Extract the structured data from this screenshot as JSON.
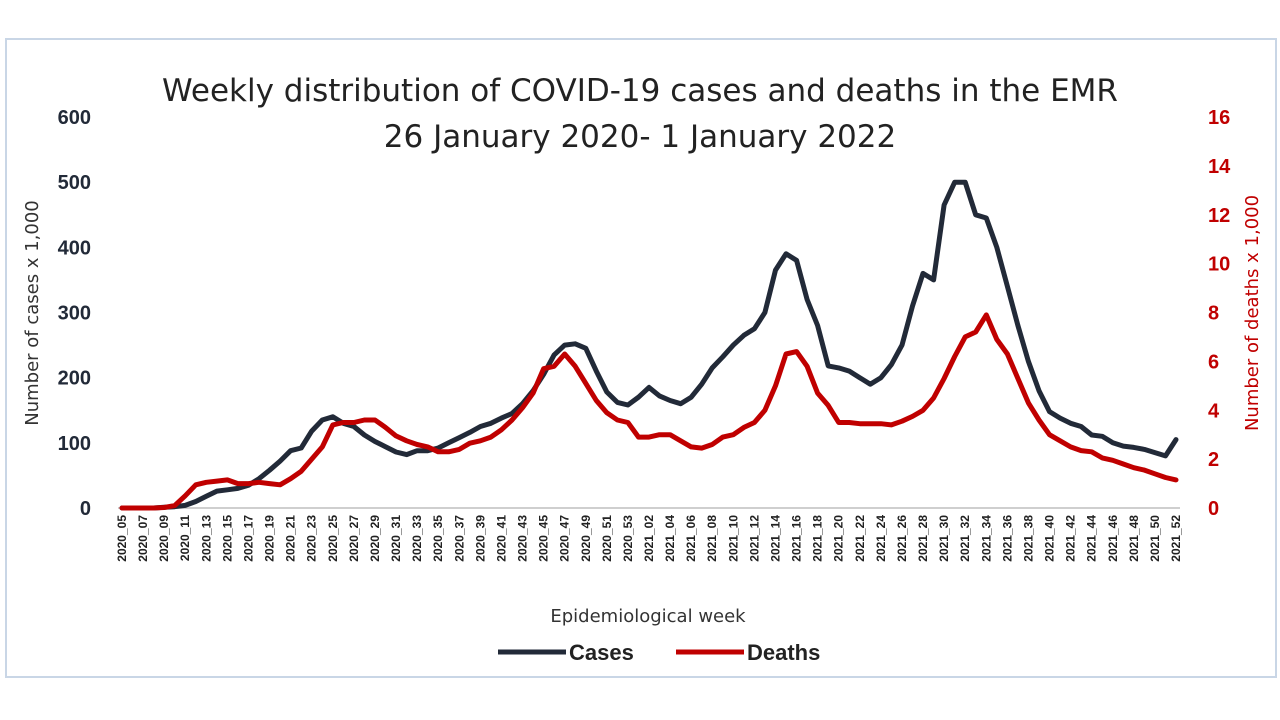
{
  "chart_data": {
    "type": "line",
    "title": "Weekly distribution of COVID-19 cases and deaths in the EMR",
    "subtitle": "26 January 2020- 1 January 2022",
    "xlabel": "Epidemiological week",
    "ylabel": "Number of cases x 1,000",
    "ylabel_right": "Number of deaths x 1,000",
    "ylim": [
      0,
      600
    ],
    "ylim_right": [
      0,
      16
    ],
    "yticks": [
      "0",
      "100",
      "200",
      "300",
      "400",
      "500",
      "600"
    ],
    "yticks_right": [
      "0",
      "2",
      "4",
      "6",
      "8",
      "10",
      "12",
      "14",
      "16"
    ],
    "legend_position": "bottom",
    "grid": false,
    "x": [
      "2020_05",
      "2020_06",
      "2020_07",
      "2020_08",
      "2020_09",
      "2020_10",
      "2020_11",
      "2020_12",
      "2020_13",
      "2020_14",
      "2020_15",
      "2020_16",
      "2020_17",
      "2020_18",
      "2020_19",
      "2020_20",
      "2020_21",
      "2020_22",
      "2020_23",
      "2020_24",
      "2020_25",
      "2020_26",
      "2020_27",
      "2020_28",
      "2020_29",
      "2020_30",
      "2020_31",
      "2020_32",
      "2020_33",
      "2020_34",
      "2020_35",
      "2020_36",
      "2020_37",
      "2020_38",
      "2020_39",
      "2020_40",
      "2020_41",
      "2020_42",
      "2020_43",
      "2020_44",
      "2020_45",
      "2020_46",
      "2020_47",
      "2020_48",
      "2020_49",
      "2020_50",
      "2020_51",
      "2020_52",
      "2020_53",
      "2021_01",
      "2021_02",
      "2021_03",
      "2021_04",
      "2021_05",
      "2021_06",
      "2021_07",
      "2021_08",
      "2021_09",
      "2021_10",
      "2021_11",
      "2021_12",
      "2021_13",
      "2021_14",
      "2021_15",
      "2021_16",
      "2021_17",
      "2021_18",
      "2021_19",
      "2021_20",
      "2021_21",
      "2021_22",
      "2021_23",
      "2021_24",
      "2021_25",
      "2021_26",
      "2021_27",
      "2021_28",
      "2021_29",
      "2021_30",
      "2021_31",
      "2021_32",
      "2021_33",
      "2021_34",
      "2021_35",
      "2021_36",
      "2021_37",
      "2021_38",
      "2021_39",
      "2021_40",
      "2021_41",
      "2021_42",
      "2021_43",
      "2021_44",
      "2021_45",
      "2021_46",
      "2021_47",
      "2021_48",
      "2021_49",
      "2021_50",
      "2021_51",
      "2021_52"
    ],
    "xtick_labels": [
      "2020_05",
      "2020_07",
      "2020_09",
      "2020_11",
      "2020_13",
      "2020_15",
      "2020_17",
      "2020_19",
      "2020_21",
      "2020_23",
      "2020_25",
      "2020_27",
      "2020_29",
      "2020_31",
      "2020_33",
      "2020_35",
      "2020_37",
      "2020_39",
      "2020_41",
      "2020_43",
      "2020_45",
      "2020_47",
      "2020_49",
      "2020_51",
      "2020_53",
      "2021_02",
      "2021_04",
      "2021_06",
      "2021_08",
      "2021_10",
      "2021_12",
      "2021_14",
      "2021_16",
      "2021_18",
      "2021_20",
      "2021_22",
      "2021_24",
      "2021_26",
      "2021_28",
      "2021_30",
      "2021_32",
      "2021_34",
      "2021_36",
      "2021_38",
      "2021_40",
      "2021_42",
      "2021_44",
      "2021_46",
      "2021_48",
      "2021_50",
      "2021_52"
    ],
    "series": [
      {
        "name": "Cases",
        "color": "#222a38",
        "axis": "left",
        "values": [
          0,
          0,
          0,
          0,
          1,
          2,
          4,
          10,
          18,
          26,
          28,
          30,
          35,
          45,
          58,
          72,
          88,
          92,
          118,
          135,
          140,
          130,
          125,
          112,
          102,
          94,
          86,
          82,
          88,
          88,
          92,
          100,
          108,
          116,
          125,
          130,
          138,
          145,
          160,
          180,
          205,
          235,
          250,
          252,
          245,
          210,
          178,
          162,
          158,
          170,
          185,
          172,
          165,
          160,
          170,
          190,
          215,
          232,
          250,
          265,
          275,
          300,
          365,
          390,
          380,
          320,
          280,
          218,
          215,
          210,
          200,
          190,
          200,
          220,
          250,
          310,
          360,
          350,
          465,
          500,
          500,
          450,
          445,
          400,
          340,
          280,
          225,
          180,
          148,
          138,
          130,
          125,
          112,
          110,
          100,
          95,
          93,
          90,
          85,
          80,
          105
        ],
        "values_right_units": null
      },
      {
        "name": "Deaths",
        "color": "#c00000",
        "axis": "right",
        "values": [
          0,
          0,
          0,
          0,
          0.02,
          0.1,
          0.5,
          0.95,
          1.05,
          1.1,
          1.15,
          1.0,
          1.0,
          1.05,
          1.0,
          0.95,
          1.2,
          1.5,
          2.0,
          2.5,
          3.4,
          3.5,
          3.5,
          3.6,
          3.6,
          3.3,
          2.95,
          2.75,
          2.6,
          2.5,
          2.3,
          2.3,
          2.4,
          2.65,
          2.75,
          2.9,
          3.2,
          3.6,
          4.1,
          4.7,
          5.7,
          5.8,
          6.3,
          5.8,
          5.1,
          4.4,
          3.9,
          3.6,
          3.5,
          2.9,
          2.9,
          3.0,
          3.0,
          2.75,
          2.5,
          2.45,
          2.6,
          2.9,
          3.0,
          3.3,
          3.5,
          4.0,
          5.0,
          6.3,
          6.4,
          5.8,
          4.7,
          4.2,
          3.5,
          3.5,
          3.45,
          3.45,
          3.45,
          3.4,
          3.55,
          3.75,
          4.0,
          4.5,
          5.3,
          6.2,
          7.0,
          7.2,
          7.9,
          6.9,
          6.3,
          5.3,
          4.3,
          3.6,
          3.0,
          2.75,
          2.5,
          2.35,
          2.3,
          2.05,
          1.95,
          1.8,
          1.65,
          1.55,
          1.4,
          1.25,
          1.15
        ]
      }
    ]
  }
}
